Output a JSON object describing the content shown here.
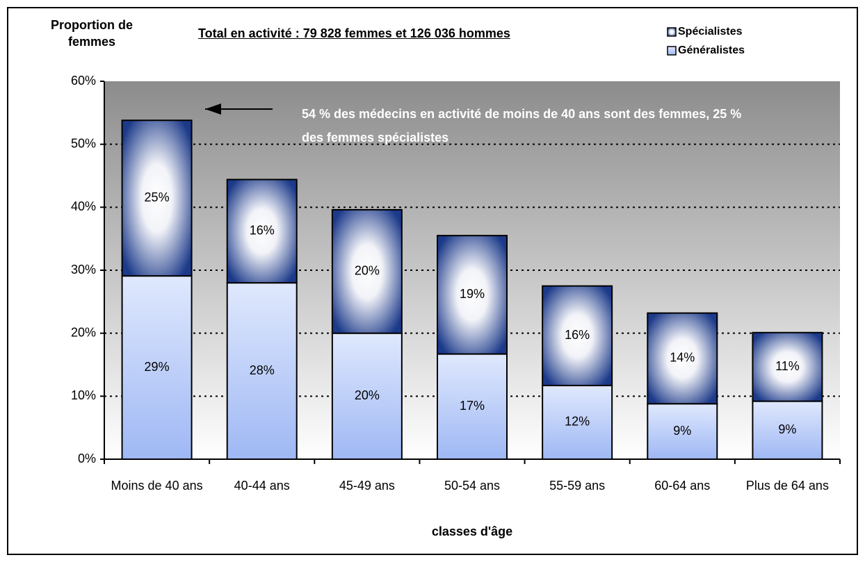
{
  "chart_data": {
    "type": "stacked_bar",
    "title": "Total en activité : 79 828 femmes et 126 036 hommes",
    "ylabel": "Proportion de femmes",
    "xlabel": "classes d'âge",
    "annotation": "54 % des médecins en activité de moins de 40 ans sont des femmes, 25 % des femmes spécialistes",
    "categories": [
      "Moins de 40 ans",
      "40-44 ans",
      "45-49 ans",
      "50-54 ans",
      "55-59 ans",
      "60-64 ans",
      "Plus de 64 ans"
    ],
    "series": [
      {
        "name": "Généralistes",
        "color": "#9fb8f4",
        "values": [
          29.1,
          28.0,
          20.0,
          16.7,
          11.7,
          8.8,
          9.2
        ],
        "value_labels": [
          "29%",
          "28%",
          "20%",
          "17%",
          "12%",
          "9%",
          "9%"
        ]
      },
      {
        "name": "Spécialistes",
        "color": "#1c3a8a",
        "values": [
          24.7,
          16.4,
          19.6,
          18.8,
          15.8,
          14.4,
          10.9
        ],
        "value_labels": [
          "25%",
          "16%",
          "20%",
          "19%",
          "16%",
          "14%",
          "11%"
        ]
      }
    ],
    "ylim": [
      0,
      60
    ],
    "yticks": [
      {
        "value": 0,
        "label": "0%"
      },
      {
        "value": 10,
        "label": "10%"
      },
      {
        "value": 20,
        "label": "20%"
      },
      {
        "value": 30,
        "label": "30%"
      },
      {
        "value": 40,
        "label": "40%"
      },
      {
        "value": 50,
        "label": "50%"
      },
      {
        "value": 60,
        "label": "60%"
      }
    ],
    "grid": true,
    "legend": "top-right"
  }
}
